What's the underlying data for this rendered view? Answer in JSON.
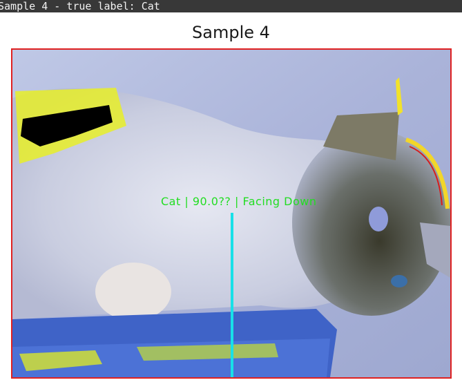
{
  "window": {
    "title": "Sample 4 - true label: Cat"
  },
  "figure": {
    "title": "Sample 4",
    "overlay_text": "Cat | 90.0?? | Facing Down",
    "colors": {
      "frame": "#e02020",
      "overlay_text": "#22dd22",
      "indicator_line": "#18e0e8"
    }
  }
}
